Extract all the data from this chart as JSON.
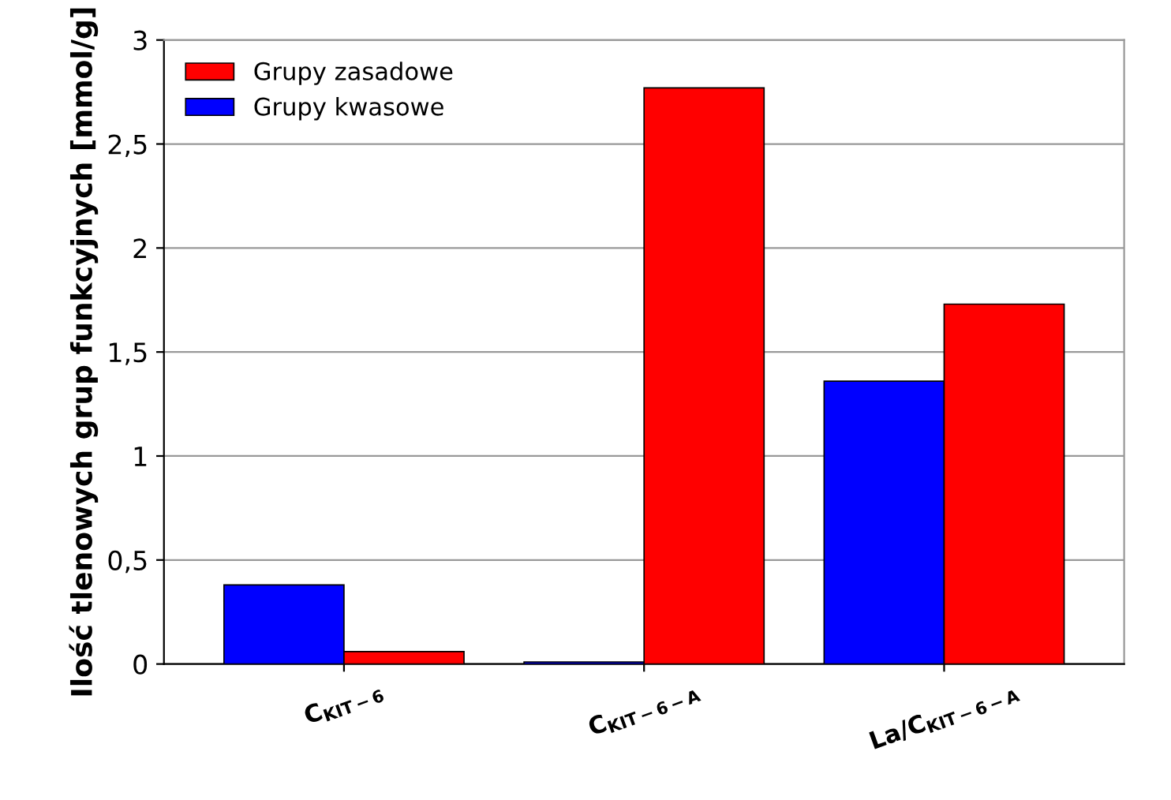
{
  "chart_data": {
    "type": "bar",
    "ylabel": "Ilość tlenowych grup funkcyjnych [mmol/g]",
    "categories": [
      "C$_{KIT−6}$",
      "C$_{KIT−6−A}$",
      "La/C$_{KIT−6−A}$"
    ],
    "series": [
      {
        "name": "Grupy kwasowe",
        "color": "#0000ff",
        "values": [
          0.38,
          0.01,
          1.36
        ]
      },
      {
        "name": "Grupy zasadowe",
        "color": "#ff0000",
        "values": [
          0.06,
          2.77,
          1.73
        ]
      }
    ],
    "ylim": [
      0,
      3
    ],
    "yticks": [
      0,
      {
        "value": 0.5,
        "label": "0,5"
      },
      1,
      {
        "value": 1.5,
        "label": "1,5"
      },
      2,
      {
        "value": 2.5,
        "label": "2,5"
      },
      3
    ],
    "grid": "y",
    "legend": "top left"
  }
}
